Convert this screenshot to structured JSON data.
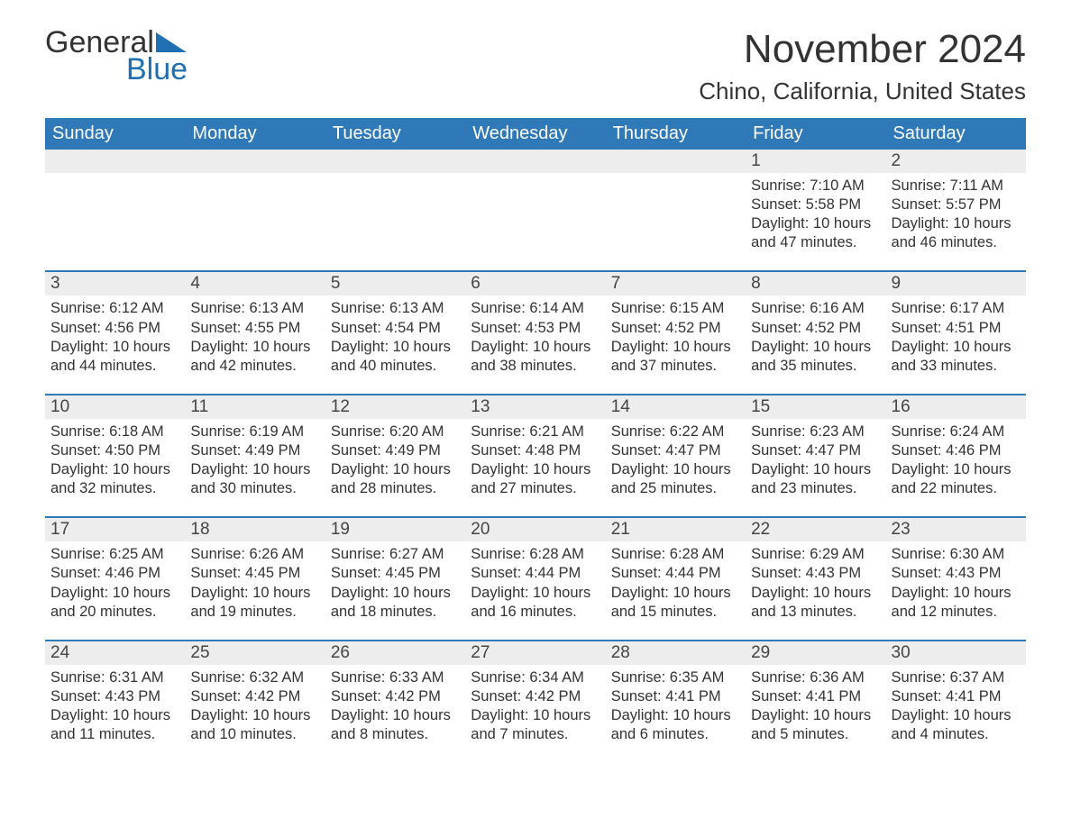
{
  "logo": {
    "word1": "General",
    "word2": "Blue",
    "accent_color": "#1f6fb2"
  },
  "title": "November 2024",
  "location": "Chino, California, United States",
  "header_bg": "#2f79b9",
  "date_bar_bg": "#ededed",
  "day_headers": [
    "Sunday",
    "Monday",
    "Tuesday",
    "Wednesday",
    "Thursday",
    "Friday",
    "Saturday"
  ],
  "weeks": [
    [
      {
        "date": "",
        "sunrise": "",
        "sunset": "",
        "daylight": ""
      },
      {
        "date": "",
        "sunrise": "",
        "sunset": "",
        "daylight": ""
      },
      {
        "date": "",
        "sunrise": "",
        "sunset": "",
        "daylight": ""
      },
      {
        "date": "",
        "sunrise": "",
        "sunset": "",
        "daylight": ""
      },
      {
        "date": "",
        "sunrise": "",
        "sunset": "",
        "daylight": ""
      },
      {
        "date": "1",
        "sunrise": "Sunrise: 7:10 AM",
        "sunset": "Sunset: 5:58 PM",
        "daylight": "Daylight: 10 hours and 47 minutes."
      },
      {
        "date": "2",
        "sunrise": "Sunrise: 7:11 AM",
        "sunset": "Sunset: 5:57 PM",
        "daylight": "Daylight: 10 hours and 46 minutes."
      }
    ],
    [
      {
        "date": "3",
        "sunrise": "Sunrise: 6:12 AM",
        "sunset": "Sunset: 4:56 PM",
        "daylight": "Daylight: 10 hours and 44 minutes."
      },
      {
        "date": "4",
        "sunrise": "Sunrise: 6:13 AM",
        "sunset": "Sunset: 4:55 PM",
        "daylight": "Daylight: 10 hours and 42 minutes."
      },
      {
        "date": "5",
        "sunrise": "Sunrise: 6:13 AM",
        "sunset": "Sunset: 4:54 PM",
        "daylight": "Daylight: 10 hours and 40 minutes."
      },
      {
        "date": "6",
        "sunrise": "Sunrise: 6:14 AM",
        "sunset": "Sunset: 4:53 PM",
        "daylight": "Daylight: 10 hours and 38 minutes."
      },
      {
        "date": "7",
        "sunrise": "Sunrise: 6:15 AM",
        "sunset": "Sunset: 4:52 PM",
        "daylight": "Daylight: 10 hours and 37 minutes."
      },
      {
        "date": "8",
        "sunrise": "Sunrise: 6:16 AM",
        "sunset": "Sunset: 4:52 PM",
        "daylight": "Daylight: 10 hours and 35 minutes."
      },
      {
        "date": "9",
        "sunrise": "Sunrise: 6:17 AM",
        "sunset": "Sunset: 4:51 PM",
        "daylight": "Daylight: 10 hours and 33 minutes."
      }
    ],
    [
      {
        "date": "10",
        "sunrise": "Sunrise: 6:18 AM",
        "sunset": "Sunset: 4:50 PM",
        "daylight": "Daylight: 10 hours and 32 minutes."
      },
      {
        "date": "11",
        "sunrise": "Sunrise: 6:19 AM",
        "sunset": "Sunset: 4:49 PM",
        "daylight": "Daylight: 10 hours and 30 minutes."
      },
      {
        "date": "12",
        "sunrise": "Sunrise: 6:20 AM",
        "sunset": "Sunset: 4:49 PM",
        "daylight": "Daylight: 10 hours and 28 minutes."
      },
      {
        "date": "13",
        "sunrise": "Sunrise: 6:21 AM",
        "sunset": "Sunset: 4:48 PM",
        "daylight": "Daylight: 10 hours and 27 minutes."
      },
      {
        "date": "14",
        "sunrise": "Sunrise: 6:22 AM",
        "sunset": "Sunset: 4:47 PM",
        "daylight": "Daylight: 10 hours and 25 minutes."
      },
      {
        "date": "15",
        "sunrise": "Sunrise: 6:23 AM",
        "sunset": "Sunset: 4:47 PM",
        "daylight": "Daylight: 10 hours and 23 minutes."
      },
      {
        "date": "16",
        "sunrise": "Sunrise: 6:24 AM",
        "sunset": "Sunset: 4:46 PM",
        "daylight": "Daylight: 10 hours and 22 minutes."
      }
    ],
    [
      {
        "date": "17",
        "sunrise": "Sunrise: 6:25 AM",
        "sunset": "Sunset: 4:46 PM",
        "daylight": "Daylight: 10 hours and 20 minutes."
      },
      {
        "date": "18",
        "sunrise": "Sunrise: 6:26 AM",
        "sunset": "Sunset: 4:45 PM",
        "daylight": "Daylight: 10 hours and 19 minutes."
      },
      {
        "date": "19",
        "sunrise": "Sunrise: 6:27 AM",
        "sunset": "Sunset: 4:45 PM",
        "daylight": "Daylight: 10 hours and 18 minutes."
      },
      {
        "date": "20",
        "sunrise": "Sunrise: 6:28 AM",
        "sunset": "Sunset: 4:44 PM",
        "daylight": "Daylight: 10 hours and 16 minutes."
      },
      {
        "date": "21",
        "sunrise": "Sunrise: 6:28 AM",
        "sunset": "Sunset: 4:44 PM",
        "daylight": "Daylight: 10 hours and 15 minutes."
      },
      {
        "date": "22",
        "sunrise": "Sunrise: 6:29 AM",
        "sunset": "Sunset: 4:43 PM",
        "daylight": "Daylight: 10 hours and 13 minutes."
      },
      {
        "date": "23",
        "sunrise": "Sunrise: 6:30 AM",
        "sunset": "Sunset: 4:43 PM",
        "daylight": "Daylight: 10 hours and 12 minutes."
      }
    ],
    [
      {
        "date": "24",
        "sunrise": "Sunrise: 6:31 AM",
        "sunset": "Sunset: 4:43 PM",
        "daylight": "Daylight: 10 hours and 11 minutes."
      },
      {
        "date": "25",
        "sunrise": "Sunrise: 6:32 AM",
        "sunset": "Sunset: 4:42 PM",
        "daylight": "Daylight: 10 hours and 10 minutes."
      },
      {
        "date": "26",
        "sunrise": "Sunrise: 6:33 AM",
        "sunset": "Sunset: 4:42 PM",
        "daylight": "Daylight: 10 hours and 8 minutes."
      },
      {
        "date": "27",
        "sunrise": "Sunrise: 6:34 AM",
        "sunset": "Sunset: 4:42 PM",
        "daylight": "Daylight: 10 hours and 7 minutes."
      },
      {
        "date": "28",
        "sunrise": "Sunrise: 6:35 AM",
        "sunset": "Sunset: 4:41 PM",
        "daylight": "Daylight: 10 hours and 6 minutes."
      },
      {
        "date": "29",
        "sunrise": "Sunrise: 6:36 AM",
        "sunset": "Sunset: 4:41 PM",
        "daylight": "Daylight: 10 hours and 5 minutes."
      },
      {
        "date": "30",
        "sunrise": "Sunrise: 6:37 AM",
        "sunset": "Sunset: 4:41 PM",
        "daylight": "Daylight: 10 hours and 4 minutes."
      }
    ]
  ]
}
